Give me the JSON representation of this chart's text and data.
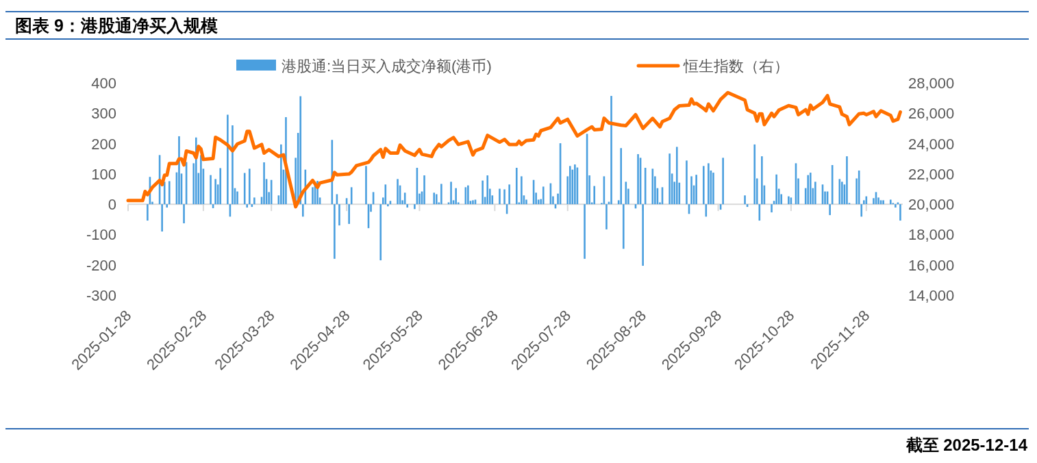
{
  "chart_data": {
    "type": "bar",
    "title": "图表 9：港股通净买入规模",
    "legend": "top",
    "xlim": [
      "2025-01-28",
      "2025-12-13"
    ],
    "xticks": [
      "2025-01-28",
      "2025-02-28",
      "2025-03-28",
      "2025-04-28",
      "2025-05-28",
      "2025-06-28",
      "2025-07-28",
      "2025-08-28",
      "2025-09-28",
      "2025-10-28",
      "2025-11-28"
    ],
    "ylim": [
      -300,
      400
    ],
    "yticks": [
      -300,
      -200,
      -100,
      0,
      100,
      200,
      300,
      400
    ],
    "y2lim": [
      14000,
      28000
    ],
    "y2ticks": [
      {
        "value": 14000,
        "label": "14,000"
      },
      {
        "value": 16000,
        "label": "16,000"
      },
      {
        "value": 18000,
        "label": "18,000"
      },
      {
        "value": 20000,
        "label": "20,000"
      },
      {
        "value": 22000,
        "label": "22,000"
      },
      {
        "value": 24000,
        "label": "24,000"
      },
      {
        "value": 26000,
        "label": "26,000"
      },
      {
        "value": 28000,
        "label": "28,000"
      }
    ],
    "annotations": [
      "截至 2025-12-14"
    ],
    "series": [
      {
        "name": "港股通:当日买入成交净额(港币)",
        "color": "#4a9fdf",
        "x": [
          "2025-02-05",
          "2025-02-06",
          "2025-02-07",
          "2025-02-10",
          "2025-02-11",
          "2025-02-12",
          "2025-02-13",
          "2025-02-14",
          "2025-02-17",
          "2025-02-18",
          "2025-02-19",
          "2025-02-20",
          "2025-02-21",
          "2025-02-24",
          "2025-02-25",
          "2025-02-26",
          "2025-02-27",
          "2025-02-28",
          "2025-03-03",
          "2025-03-04",
          "2025-03-05",
          "2025-03-06",
          "2025-03-07",
          "2025-03-10",
          "2025-03-11",
          "2025-03-12",
          "2025-03-13",
          "2025-03-14",
          "2025-03-17",
          "2025-03-18",
          "2025-03-19",
          "2025-03-20",
          "2025-03-21",
          "2025-03-24",
          "2025-03-25",
          "2025-03-26",
          "2025-03-27",
          "2025-03-28",
          "2025-03-31",
          "2025-04-01",
          "2025-04-02",
          "2025-04-03",
          "2025-04-07",
          "2025-04-08",
          "2025-04-09",
          "2025-04-10",
          "2025-04-11",
          "2025-04-14",
          "2025-04-15",
          "2025-04-16",
          "2025-04-17",
          "2025-04-22",
          "2025-04-23",
          "2025-04-24",
          "2025-04-25",
          "2025-04-28",
          "2025-04-29",
          "2025-04-30",
          "2025-05-06",
          "2025-05-07",
          "2025-05-08",
          "2025-05-09",
          "2025-05-12",
          "2025-05-13",
          "2025-05-14",
          "2025-05-15",
          "2025-05-16",
          "2025-05-19",
          "2025-05-20",
          "2025-05-21",
          "2025-05-22",
          "2025-05-23",
          "2025-05-26",
          "2025-05-27",
          "2025-05-28",
          "2025-05-29",
          "2025-05-30",
          "2025-06-03",
          "2025-06-04",
          "2025-06-05",
          "2025-06-06",
          "2025-06-09",
          "2025-06-10",
          "2025-06-11",
          "2025-06-12",
          "2025-06-13",
          "2025-06-16",
          "2025-06-17",
          "2025-06-18",
          "2025-06-19",
          "2025-06-20",
          "2025-06-23",
          "2025-06-24",
          "2025-06-25",
          "2025-06-26",
          "2025-06-27",
          "2025-06-30",
          "2025-07-02",
          "2025-07-03",
          "2025-07-04",
          "2025-07-07",
          "2025-07-08",
          "2025-07-09",
          "2025-07-10",
          "2025-07-11",
          "2025-07-14",
          "2025-07-15",
          "2025-07-16",
          "2025-07-17",
          "2025-07-18",
          "2025-07-21",
          "2025-07-22",
          "2025-07-23",
          "2025-07-24",
          "2025-07-25",
          "2025-07-28",
          "2025-07-29",
          "2025-07-30",
          "2025-07-31",
          "2025-08-01",
          "2025-08-04",
          "2025-08-05",
          "2025-08-06",
          "2025-08-07",
          "2025-08-08",
          "2025-08-11",
          "2025-08-12",
          "2025-08-13",
          "2025-08-14",
          "2025-08-15",
          "2025-08-18",
          "2025-08-19",
          "2025-08-20",
          "2025-08-21",
          "2025-08-22",
          "2025-08-25",
          "2025-08-26",
          "2025-08-27",
          "2025-08-28",
          "2025-08-29",
          "2025-09-01",
          "2025-09-02",
          "2025-09-03",
          "2025-09-04",
          "2025-09-05",
          "2025-09-08",
          "2025-09-09",
          "2025-09-10",
          "2025-09-11",
          "2025-09-12",
          "2025-09-15",
          "2025-09-16",
          "2025-09-17",
          "2025-09-18",
          "2025-09-19",
          "2025-09-22",
          "2025-09-23",
          "2025-09-24",
          "2025-09-25",
          "2025-09-26",
          "2025-09-29",
          "2025-09-30",
          "2025-10-09",
          "2025-10-10",
          "2025-10-13",
          "2025-10-14",
          "2025-10-15",
          "2025-10-16",
          "2025-10-17",
          "2025-10-20",
          "2025-10-21",
          "2025-10-22",
          "2025-10-23",
          "2025-10-24",
          "2025-10-27",
          "2025-10-28",
          "2025-10-30",
          "2025-10-31",
          "2025-11-03",
          "2025-11-04",
          "2025-11-05",
          "2025-11-06",
          "2025-11-07",
          "2025-11-10",
          "2025-11-11",
          "2025-11-12",
          "2025-11-13",
          "2025-11-14",
          "2025-11-17",
          "2025-11-18",
          "2025-11-19",
          "2025-11-20",
          "2025-11-21",
          "2025-11-24",
          "2025-11-25",
          "2025-11-26",
          "2025-11-27",
          "2025-11-28",
          "2025-12-01",
          "2025-12-02",
          "2025-12-03",
          "2025-12-04",
          "2025-12-05",
          "2025-12-08",
          "2025-12-09",
          "2025-12-10",
          "2025-12-11",
          "2025-12-12"
        ],
        "values": [
          -54,
          90,
          8,
          162,
          -90,
          74,
          -11,
          76,
          105,
          224,
          101,
          -63,
          139,
          135,
          220,
          103,
          162,
          117,
          96,
          -13,
          83,
          65,
          119,
          295,
          -41,
          260,
          53,
          42,
          103,
          -11,
          117,
          -9,
          22,
          24,
          138,
          83,
          40,
          80,
          29,
          197,
          114,
          287,
          153,
          235,
          356,
          -41,
          114,
          56,
          74,
          77,
          22,
          212,
          -180,
          33,
          -70,
          20,
          -65,
          56,
          126,
          -79,
          -25,
          40,
          -185,
          22,
          65,
          -7,
          11,
          83,
          62,
          13,
          38,
          -11,
          -16,
          120,
          35,
          42,
          95,
          38,
          33,
          6,
          67,
          6,
          74,
          13,
          53,
          6,
          56,
          62,
          11,
          13,
          15,
          78,
          24,
          95,
          51,
          29,
          51,
          49,
          -32,
          65,
          120,
          6,
          92,
          29,
          15,
          80,
          38,
          15,
          17,
          58,
          69,
          26,
          -14,
          35,
          201,
          92,
          126,
          114,
          131,
          121,
          -180,
          232,
          95,
          6,
          60,
          4,
          92,
          -83,
          8,
          357,
          13,
          185,
          -147,
          74,
          51,
          -14,
          165,
          153,
          -203,
          120,
          117,
          92,
          53,
          6,
          56,
          167,
          101,
          74,
          189,
          71,
          144,
          -32,
          92,
          62,
          97,
          126,
          -41,
          135,
          111,
          104,
          -18,
          153,
          29,
          -9,
          197,
          85,
          -54,
          158,
          62,
          -27,
          11,
          98,
          51,
          33,
          26,
          22,
          135,
          85,
          53,
          96,
          104,
          53,
          74,
          65,
          42,
          42,
          -36,
          129,
          83,
          74,
          65,
          158,
          4,
          85,
          111,
          -41,
          13,
          26,
          20,
          40,
          22,
          13,
          13,
          15,
          4,
          -11,
          6,
          -54
        ]
      },
      {
        "type": "line",
        "name": "恒生指数（右）",
        "color": "#ff7000",
        "axis": "y2",
        "x": [
          "2025-01-28",
          "2025-02-03",
          "2025-02-04",
          "2025-02-05",
          "2025-02-07",
          "2025-02-10",
          "2025-02-11",
          "2025-02-12",
          "2025-02-13",
          "2025-02-14",
          "2025-02-17",
          "2025-02-18",
          "2025-02-19",
          "2025-02-20",
          "2025-02-21",
          "2025-02-24",
          "2025-02-25",
          "2025-02-26",
          "2025-02-27",
          "2025-02-28",
          "2025-03-03",
          "2025-03-04",
          "2025-03-05",
          "2025-03-07",
          "2025-03-10",
          "2025-03-12",
          "2025-03-14",
          "2025-03-17",
          "2025-03-18",
          "2025-03-19",
          "2025-03-21",
          "2025-03-24",
          "2025-03-25",
          "2025-03-27",
          "2025-03-31",
          "2025-04-02",
          "2025-04-07",
          "2025-04-10",
          "2025-04-14",
          "2025-04-16",
          "2025-04-17",
          "2025-04-22",
          "2025-04-23",
          "2025-04-24",
          "2025-04-29",
          "2025-04-30",
          "2025-05-02",
          "2025-05-07",
          "2025-05-08",
          "2025-05-09",
          "2025-05-12",
          "2025-05-13",
          "2025-05-14",
          "2025-05-16",
          "2025-05-19",
          "2025-05-20",
          "2025-05-22",
          "2025-05-26",
          "2025-05-27",
          "2025-05-28",
          "2025-05-29",
          "2025-06-02",
          "2025-06-03",
          "2025-06-05",
          "2025-06-06",
          "2025-06-09",
          "2025-06-11",
          "2025-06-13",
          "2025-06-17",
          "2025-06-19",
          "2025-06-20",
          "2025-06-23",
          "2025-06-25",
          "2025-06-30",
          "2025-07-02",
          "2025-07-04",
          "2025-07-07",
          "2025-07-08",
          "2025-07-09",
          "2025-07-11",
          "2025-07-14",
          "2025-07-15",
          "2025-07-16",
          "2025-07-17",
          "2025-07-21",
          "2025-07-24",
          "2025-07-25",
          "2025-07-28",
          "2025-08-01",
          "2025-08-05",
          "2025-08-07",
          "2025-08-08",
          "2025-08-11",
          "2025-08-12",
          "2025-08-14",
          "2025-08-19",
          "2025-08-21",
          "2025-08-25",
          "2025-08-28",
          "2025-09-01",
          "2025-09-04",
          "2025-09-05",
          "2025-09-08",
          "2025-09-10",
          "2025-09-12",
          "2025-09-16",
          "2025-09-17",
          "2025-09-18",
          "2025-09-19",
          "2025-09-22",
          "2025-09-23",
          "2025-09-24",
          "2025-09-26",
          "2025-09-29",
          "2025-10-02",
          "2025-10-09",
          "2025-10-10",
          "2025-10-13",
          "2025-10-14",
          "2025-10-15",
          "2025-10-16",
          "2025-10-17",
          "2025-10-20",
          "2025-10-21",
          "2025-10-23",
          "2025-10-27",
          "2025-10-30",
          "2025-10-31",
          "2025-11-03",
          "2025-11-04",
          "2025-11-05",
          "2025-11-06",
          "2025-11-10",
          "2025-11-12",
          "2025-11-13",
          "2025-11-17",
          "2025-11-18",
          "2025-11-20",
          "2025-11-21",
          "2025-11-25",
          "2025-11-27",
          "2025-11-28",
          "2025-12-01",
          "2025-12-02",
          "2025-12-04",
          "2025-12-08",
          "2025-12-09",
          "2025-12-11",
          "2025-12-12"
        ],
        "values": [
          20240,
          20240,
          20840,
          20630,
          21110,
          21570,
          21290,
          21910,
          21910,
          22680,
          22680,
          22990,
          22990,
          22590,
          23510,
          23370,
          23060,
          23810,
          23640,
          22950,
          23000,
          23010,
          24410,
          24240,
          23900,
          23520,
          23970,
          24170,
          24800,
          24800,
          23700,
          23940,
          23370,
          23600,
          23150,
          23250,
          19830,
          20810,
          21570,
          21110,
          21400,
          21600,
          22090,
          21940,
          21990,
          22120,
          22540,
          22770,
          22950,
          23190,
          23600,
          23100,
          23670,
          23370,
          23370,
          23900,
          23520,
          23220,
          23420,
          23600,
          23300,
          23150,
          23520,
          23940,
          23790,
          24200,
          24390,
          23940,
          24120,
          23250,
          23520,
          23700,
          24540,
          24090,
          24270,
          23940,
          23940,
          24150,
          23940,
          24200,
          24240,
          24610,
          24500,
          24850,
          25060,
          25660,
          25360,
          25600,
          24500,
          24910,
          25100,
          24910,
          24940,
          25670,
          25360,
          25210,
          25180,
          25900,
          25000,
          25660,
          25100,
          25450,
          25660,
          26230,
          26490,
          26530,
          26940,
          26610,
          26650,
          26310,
          26160,
          26610,
          26160,
          26910,
          27360,
          26860,
          26230,
          26000,
          25480,
          25960,
          25960,
          25250,
          26000,
          25780,
          26200,
          26500,
          26380,
          25900,
          26230,
          25930,
          26530,
          26260,
          26710,
          27160,
          26610,
          26410,
          25930,
          25780,
          25250,
          25960,
          26000,
          25900,
          26110,
          25780,
          26160,
          25850,
          25480,
          25600,
          26080
        ]
      }
    ]
  }
}
